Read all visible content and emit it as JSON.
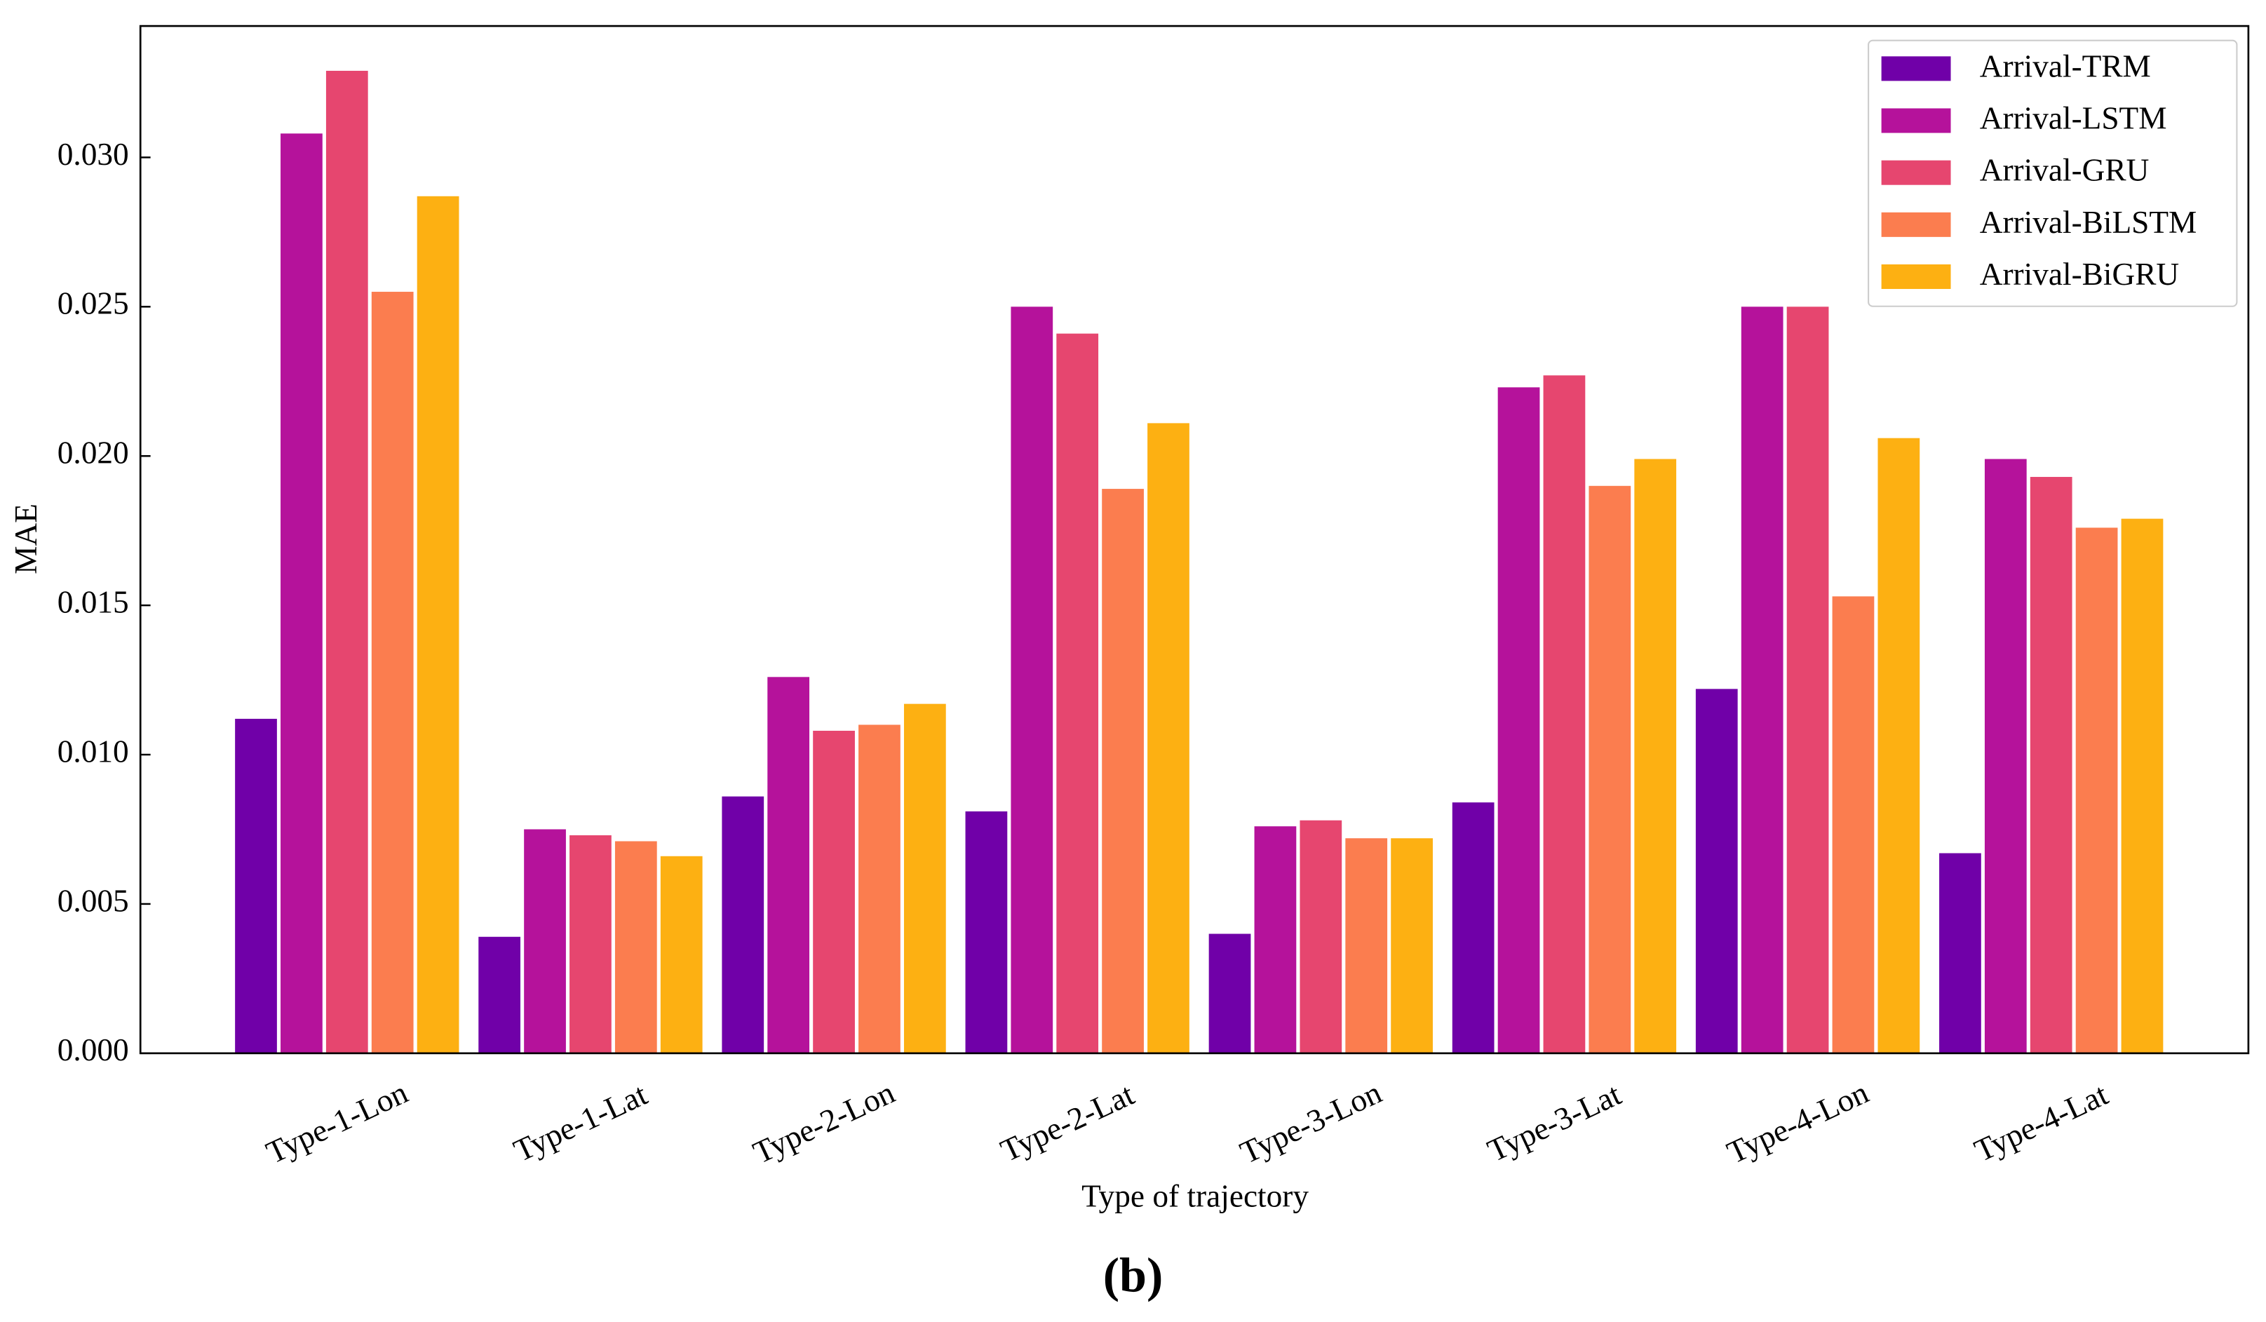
{
  "chart_data": {
    "type": "bar",
    "ylabel": "MAE",
    "xlabel": "Type of trajectory",
    "caption": "(b)",
    "categories": [
      "Type-1-Lon",
      "Type-1-Lat",
      "Type-2-Lon",
      "Type-2-Lat",
      "Type-3-Lon",
      "Type-3-Lat",
      "Type-4-Lon",
      "Type-4-Lat"
    ],
    "series": [
      {
        "name": "Arrival-TRM",
        "color": "#7000a8",
        "values": [
          0.0112,
          0.0039,
          0.0086,
          0.0081,
          0.004,
          0.0084,
          0.0122,
          0.0067
        ]
      },
      {
        "name": "Arrival-LSTM",
        "color": "#b5129b",
        "values": [
          0.0308,
          0.0075,
          0.0126,
          0.025,
          0.0076,
          0.0223,
          0.025,
          0.0199
        ]
      },
      {
        "name": "Arrival-GRU",
        "color": "#e6466f",
        "values": [
          0.0329,
          0.0073,
          0.0108,
          0.0241,
          0.0078,
          0.0227,
          0.025,
          0.0193
        ]
      },
      {
        "name": "Arrival-BiLSTM",
        "color": "#fb7d4f",
        "values": [
          0.0255,
          0.0071,
          0.011,
          0.0189,
          0.0072,
          0.019,
          0.0153,
          0.0176
        ]
      },
      {
        "name": "Arrival-BiGRU",
        "color": "#fdb012",
        "values": [
          0.0287,
          0.0066,
          0.0117,
          0.0211,
          0.0072,
          0.0199,
          0.0206,
          0.0179
        ]
      }
    ],
    "ylim": [
      0,
      0.0344
    ],
    "yticks": [
      {
        "value": 0,
        "label": "0.000"
      },
      0.005,
      {
        "value": 0.01,
        "label": "0.010"
      },
      0.015,
      {
        "value": 0.02,
        "label": "0.020"
      },
      0.025,
      {
        "value": 0.03,
        "label": "0.030"
      }
    ],
    "legend": "upper right",
    "grid": false
  }
}
